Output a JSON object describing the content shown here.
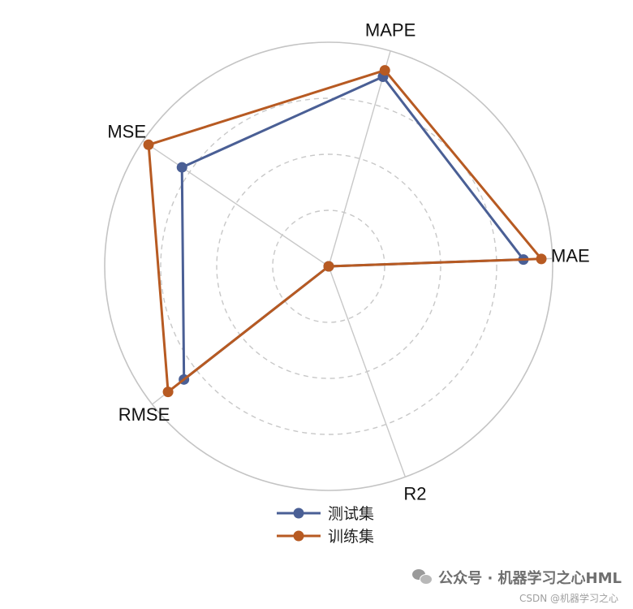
{
  "chart_data": {
    "type": "radar",
    "axes": [
      "MAE",
      "MAPE",
      "MSE",
      "RMSE",
      "R2"
    ],
    "rlim": [
      0,
      1
    ],
    "ring_levels": [
      0.25,
      0.5,
      0.75,
      1.0
    ],
    "grid": true,
    "legend_position": "bottom",
    "series": [
      {
        "name": "测试集",
        "color": "#4a5f95",
        "values": [
          0.87,
          0.88,
          0.79,
          0.82,
          0.0
        ]
      },
      {
        "name": "训练集",
        "color": "#b75a22",
        "values": [
          0.95,
          0.91,
          0.97,
          0.91,
          0.0
        ]
      }
    ]
  },
  "watermark": {
    "icon": "wechat-icon",
    "text": "公众号 · 机器学习之心HML"
  },
  "credit": "CSDN @机器学习之心"
}
